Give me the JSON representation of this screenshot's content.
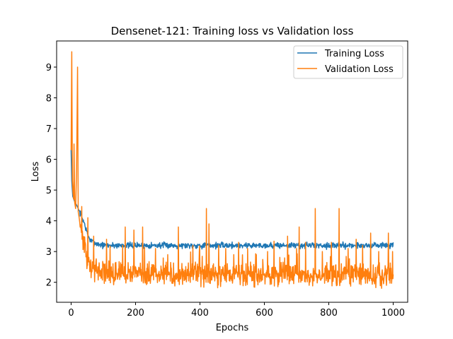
{
  "chart_data": {
    "type": "line",
    "title": "Densenet-121: Training loss vs Validation loss",
    "xlabel": "Epochs",
    "ylabel": "Loss",
    "xlim": [
      -45,
      1045
    ],
    "ylim": [
      1.35,
      9.85
    ],
    "xticks": [
      0,
      200,
      400,
      600,
      800,
      1000
    ],
    "yticks": [
      2,
      3,
      4,
      5,
      6,
      7,
      8,
      9
    ],
    "legend_position": "top-right",
    "series": [
      {
        "name": "Training Loss",
        "color": "#1f77b4",
        "keypoints": [
          [
            0,
            6.3
          ],
          [
            2,
            5.3
          ],
          [
            5,
            4.8
          ],
          [
            10,
            4.65
          ],
          [
            20,
            4.45
          ],
          [
            30,
            4.2
          ],
          [
            40,
            3.95
          ],
          [
            50,
            3.6
          ],
          [
            60,
            3.35
          ],
          [
            80,
            3.25
          ],
          [
            100,
            3.2
          ],
          [
            200,
            3.2
          ],
          [
            400,
            3.2
          ],
          [
            600,
            3.2
          ],
          [
            800,
            3.2
          ],
          [
            1000,
            3.2
          ]
        ],
        "noise": 0.06,
        "seed": 7
      },
      {
        "name": "Validation Loss",
        "color": "#ff7f0e",
        "keypoints": [
          [
            0,
            6.3
          ],
          [
            2,
            9.5
          ],
          [
            4,
            5.3
          ],
          [
            6,
            4.9
          ],
          [
            8,
            4.7
          ],
          [
            9,
            6.5
          ],
          [
            11,
            4.6
          ],
          [
            14,
            4.4
          ],
          [
            17,
            5.7
          ],
          [
            20,
            9.0
          ],
          [
            22,
            4.3
          ],
          [
            25,
            4.1
          ],
          [
            30,
            3.8
          ],
          [
            35,
            3.5
          ],
          [
            40,
            3.3
          ],
          [
            45,
            3.0
          ],
          [
            50,
            2.7
          ],
          [
            60,
            2.5
          ],
          [
            80,
            2.4
          ],
          [
            100,
            2.3
          ],
          [
            200,
            2.25
          ],
          [
            400,
            2.25
          ],
          [
            600,
            2.25
          ],
          [
            800,
            2.25
          ],
          [
            1000,
            2.2
          ]
        ],
        "noise": 0.22,
        "seed": 13,
        "spikes": [
          [
            52,
            4.1
          ],
          [
            70,
            3.5
          ],
          [
            110,
            3.4
          ],
          [
            160,
            3.2
          ],
          [
            168,
            3.8
          ],
          [
            195,
            3.7
          ],
          [
            222,
            3.8
          ],
          [
            262,
            3.1
          ],
          [
            300,
            2.9
          ],
          [
            333,
            3.8
          ],
          [
            378,
            3.2
          ],
          [
            398,
            3.0
          ],
          [
            420,
            4.4
          ],
          [
            428,
            3.9
          ],
          [
            458,
            3.2
          ],
          [
            480,
            3.1
          ],
          [
            505,
            2.9
          ],
          [
            520,
            3.3
          ],
          [
            548,
            3.1
          ],
          [
            575,
            2.9
          ],
          [
            610,
            3.0
          ],
          [
            672,
            3.5
          ],
          [
            700,
            3.1
          ],
          [
            708,
            3.8
          ],
          [
            728,
            3.3
          ],
          [
            758,
            4.4
          ],
          [
            780,
            3.0
          ],
          [
            808,
            3.3
          ],
          [
            832,
            4.4
          ],
          [
            860,
            3.1
          ],
          [
            885,
            3.4
          ],
          [
            905,
            3.2
          ],
          [
            930,
            3.6
          ],
          [
            955,
            3.0
          ],
          [
            985,
            3.6
          ],
          [
            998,
            3.0
          ]
        ]
      }
    ]
  }
}
